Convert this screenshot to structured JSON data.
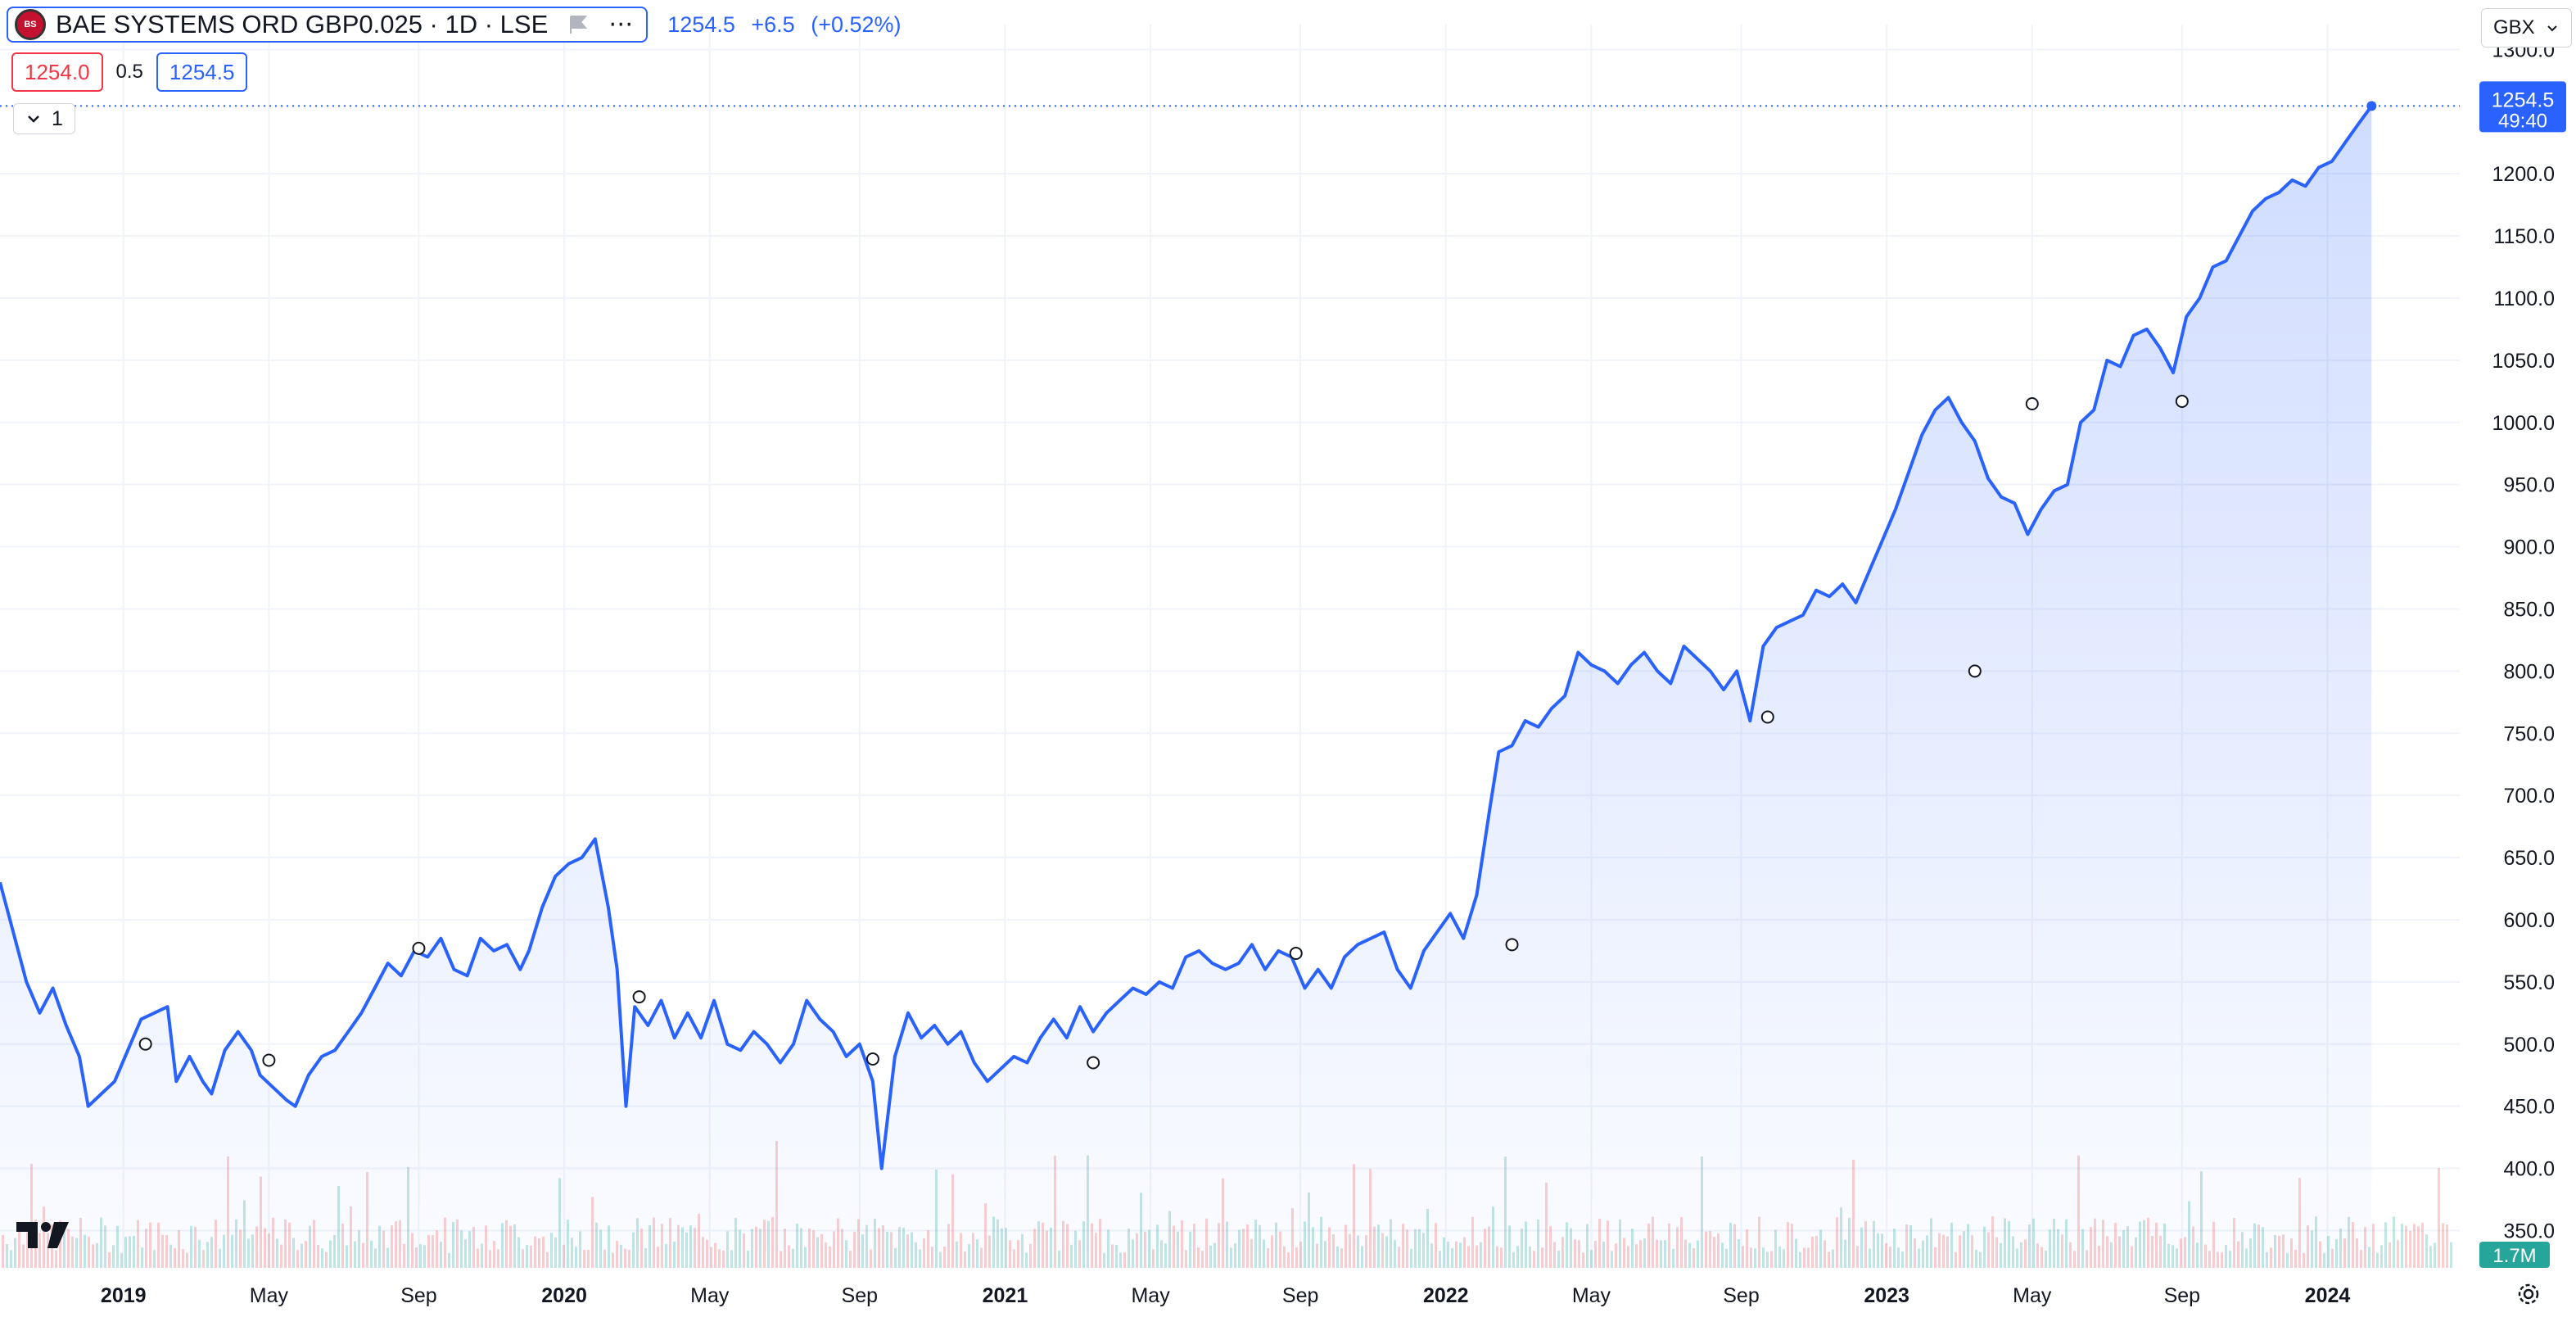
{
  "header": {
    "logo_text": "BS",
    "symbol_title": "BAE SYSTEMS ORD GBP0.025 · 1D · LSE",
    "last_price": "1254.5",
    "change": "+6.5",
    "change_pct": "(+0.52%)",
    "bid": "1254.0",
    "spread": "0.5",
    "ask": "1254.5",
    "indicator_count": "1",
    "currency": "GBX"
  },
  "price_label": {
    "price": "1254.5",
    "countdown": "49:40"
  },
  "volume_label": "1.7M",
  "colors": {
    "line": "#2962ff",
    "bid": "#f23645",
    "vol_up": "#26a69a",
    "vol_down": "#ef5350"
  },
  "chart_data": {
    "type": "area",
    "title": "BAE SYSTEMS ORD GBP0.025 · 1D · LSE",
    "xlabel": "",
    "ylabel": "",
    "xlim": [
      2018.72,
      2024.3
    ],
    "ylim": [
      320,
      1320
    ],
    "y_ticks": [
      350,
      400,
      450,
      500,
      550,
      600,
      650,
      700,
      750,
      800,
      850,
      900,
      950,
      1000,
      1050,
      1100,
      1150,
      1200,
      1300
    ],
    "x_ticks": [
      {
        "x": 2019.0,
        "label": "2019",
        "bold": true
      },
      {
        "x": 2019.33,
        "label": "May"
      },
      {
        "x": 2019.67,
        "label": "Sep"
      },
      {
        "x": 2020.0,
        "label": "2020",
        "bold": true
      },
      {
        "x": 2020.33,
        "label": "May"
      },
      {
        "x": 2020.67,
        "label": "Sep"
      },
      {
        "x": 2021.0,
        "label": "2021",
        "bold": true
      },
      {
        "x": 2021.33,
        "label": "May"
      },
      {
        "x": 2021.67,
        "label": "Sep"
      },
      {
        "x": 2022.0,
        "label": "2022",
        "bold": true
      },
      {
        "x": 2022.33,
        "label": "May"
      },
      {
        "x": 2022.67,
        "label": "Sep"
      },
      {
        "x": 2023.0,
        "label": "2023",
        "bold": true
      },
      {
        "x": 2023.33,
        "label": "May"
      },
      {
        "x": 2023.67,
        "label": "Sep"
      },
      {
        "x": 2024.0,
        "label": "2024",
        "bold": true
      }
    ],
    "grid": true,
    "legend": "none",
    "series": [
      {
        "values": [
          [
            2018.72,
            630
          ],
          [
            2018.75,
            590
          ],
          [
            2018.78,
            550
          ],
          [
            2018.81,
            525
          ],
          [
            2018.84,
            545
          ],
          [
            2018.87,
            515
          ],
          [
            2018.9,
            490
          ],
          [
            2018.92,
            450
          ],
          [
            2018.95,
            460
          ],
          [
            2018.98,
            470
          ],
          [
            2019.01,
            495
          ],
          [
            2019.04,
            520
          ],
          [
            2019.07,
            525
          ],
          [
            2019.1,
            530
          ],
          [
            2019.12,
            470
          ],
          [
            2019.15,
            490
          ],
          [
            2019.18,
            470
          ],
          [
            2019.2,
            460
          ],
          [
            2019.23,
            495
          ],
          [
            2019.26,
            510
          ],
          [
            2019.29,
            495
          ],
          [
            2019.31,
            475
          ],
          [
            2019.34,
            465
          ],
          [
            2019.37,
            455
          ],
          [
            2019.39,
            450
          ],
          [
            2019.42,
            475
          ],
          [
            2019.45,
            490
          ],
          [
            2019.48,
            495
          ],
          [
            2019.51,
            510
          ],
          [
            2019.54,
            525
          ],
          [
            2019.57,
            545
          ],
          [
            2019.6,
            565
          ],
          [
            2019.63,
            555
          ],
          [
            2019.66,
            575
          ],
          [
            2019.69,
            570
          ],
          [
            2019.72,
            585
          ],
          [
            2019.75,
            560
          ],
          [
            2019.78,
            555
          ],
          [
            2019.81,
            585
          ],
          [
            2019.84,
            575
          ],
          [
            2019.87,
            580
          ],
          [
            2019.9,
            560
          ],
          [
            2019.92,
            575
          ],
          [
            2019.95,
            610
          ],
          [
            2019.98,
            635
          ],
          [
            2020.01,
            645
          ],
          [
            2020.04,
            650
          ],
          [
            2020.07,
            665
          ],
          [
            2020.1,
            610
          ],
          [
            2020.12,
            560
          ],
          [
            2020.14,
            450
          ],
          [
            2020.16,
            530
          ],
          [
            2020.19,
            515
          ],
          [
            2020.22,
            535
          ],
          [
            2020.25,
            505
          ],
          [
            2020.28,
            525
          ],
          [
            2020.31,
            505
          ],
          [
            2020.34,
            535
          ],
          [
            2020.37,
            500
          ],
          [
            2020.4,
            495
          ],
          [
            2020.43,
            510
          ],
          [
            2020.46,
            500
          ],
          [
            2020.49,
            485
          ],
          [
            2020.52,
            500
          ],
          [
            2020.55,
            535
          ],
          [
            2020.58,
            520
          ],
          [
            2020.61,
            510
          ],
          [
            2020.64,
            490
          ],
          [
            2020.67,
            500
          ],
          [
            2020.7,
            470
          ],
          [
            2020.72,
            400
          ],
          [
            2020.75,
            490
          ],
          [
            2020.78,
            525
          ],
          [
            2020.81,
            505
          ],
          [
            2020.84,
            515
          ],
          [
            2020.87,
            500
          ],
          [
            2020.9,
            510
          ],
          [
            2020.93,
            485
          ],
          [
            2020.96,
            470
          ],
          [
            2020.99,
            480
          ],
          [
            2021.02,
            490
          ],
          [
            2021.05,
            485
          ],
          [
            2021.08,
            505
          ],
          [
            2021.11,
            520
          ],
          [
            2021.14,
            505
          ],
          [
            2021.17,
            530
          ],
          [
            2021.2,
            510
          ],
          [
            2021.23,
            525
          ],
          [
            2021.26,
            535
          ],
          [
            2021.29,
            545
          ],
          [
            2021.32,
            540
          ],
          [
            2021.35,
            550
          ],
          [
            2021.38,
            545
          ],
          [
            2021.41,
            570
          ],
          [
            2021.44,
            575
          ],
          [
            2021.47,
            565
          ],
          [
            2021.5,
            560
          ],
          [
            2021.53,
            565
          ],
          [
            2021.56,
            580
          ],
          [
            2021.59,
            560
          ],
          [
            2021.62,
            575
          ],
          [
            2021.65,
            570
          ],
          [
            2021.68,
            545
          ],
          [
            2021.71,
            560
          ],
          [
            2021.74,
            545
          ],
          [
            2021.77,
            570
          ],
          [
            2021.8,
            580
          ],
          [
            2021.83,
            585
          ],
          [
            2021.86,
            590
          ],
          [
            2021.89,
            560
          ],
          [
            2021.92,
            545
          ],
          [
            2021.95,
            575
          ],
          [
            2021.98,
            590
          ],
          [
            2022.01,
            605
          ],
          [
            2022.04,
            585
          ],
          [
            2022.07,
            620
          ],
          [
            2022.1,
            690
          ],
          [
            2022.12,
            735
          ],
          [
            2022.15,
            740
          ],
          [
            2022.18,
            760
          ],
          [
            2022.21,
            755
          ],
          [
            2022.24,
            770
          ],
          [
            2022.27,
            780
          ],
          [
            2022.3,
            815
          ],
          [
            2022.33,
            805
          ],
          [
            2022.36,
            800
          ],
          [
            2022.39,
            790
          ],
          [
            2022.42,
            805
          ],
          [
            2022.45,
            815
          ],
          [
            2022.48,
            800
          ],
          [
            2022.51,
            790
          ],
          [
            2022.54,
            820
          ],
          [
            2022.57,
            810
          ],
          [
            2022.6,
            800
          ],
          [
            2022.63,
            785
          ],
          [
            2022.66,
            800
          ],
          [
            2022.69,
            760
          ],
          [
            2022.72,
            820
          ],
          [
            2022.75,
            835
          ],
          [
            2022.78,
            840
          ],
          [
            2022.81,
            845
          ],
          [
            2022.84,
            865
          ],
          [
            2022.87,
            860
          ],
          [
            2022.9,
            870
          ],
          [
            2022.93,
            855
          ],
          [
            2022.96,
            880
          ],
          [
            2022.99,
            905
          ],
          [
            2023.02,
            930
          ],
          [
            2023.05,
            960
          ],
          [
            2023.08,
            990
          ],
          [
            2023.11,
            1010
          ],
          [
            2023.14,
            1020
          ],
          [
            2023.17,
            1000
          ],
          [
            2023.2,
            985
          ],
          [
            2023.23,
            955
          ],
          [
            2023.26,
            940
          ],
          [
            2023.29,
            935
          ],
          [
            2023.32,
            910
          ],
          [
            2023.35,
            930
          ],
          [
            2023.38,
            945
          ],
          [
            2023.41,
            950
          ],
          [
            2023.44,
            1000
          ],
          [
            2023.47,
            1010
          ],
          [
            2023.5,
            1050
          ],
          [
            2023.53,
            1045
          ],
          [
            2023.56,
            1070
          ],
          [
            2023.59,
            1075
          ],
          [
            2023.62,
            1060
          ],
          [
            2023.65,
            1040
          ],
          [
            2023.68,
            1085
          ],
          [
            2023.71,
            1100
          ],
          [
            2023.74,
            1125
          ],
          [
            2023.77,
            1130
          ],
          [
            2023.8,
            1150
          ],
          [
            2023.83,
            1170
          ],
          [
            2023.86,
            1180
          ],
          [
            2023.89,
            1185
          ],
          [
            2023.92,
            1195
          ],
          [
            2023.95,
            1190
          ],
          [
            2023.98,
            1205
          ],
          [
            2024.01,
            1210
          ],
          [
            2024.04,
            1225
          ],
          [
            2024.07,
            1240
          ],
          [
            2024.1,
            1254.5
          ]
        ]
      }
    ],
    "markers": [
      [
        2019.05,
        500
      ],
      [
        2019.33,
        487
      ],
      [
        2019.67,
        577
      ],
      [
        2020.17,
        538
      ],
      [
        2020.7,
        488
      ],
      [
        2021.2,
        485
      ],
      [
        2021.66,
        573
      ],
      [
        2022.15,
        580
      ],
      [
        2022.73,
        763
      ],
      [
        2023.2,
        800
      ],
      [
        2023.33,
        1015
      ],
      [
        2023.67,
        1017
      ]
    ],
    "volume_max_label": "1.7M"
  }
}
